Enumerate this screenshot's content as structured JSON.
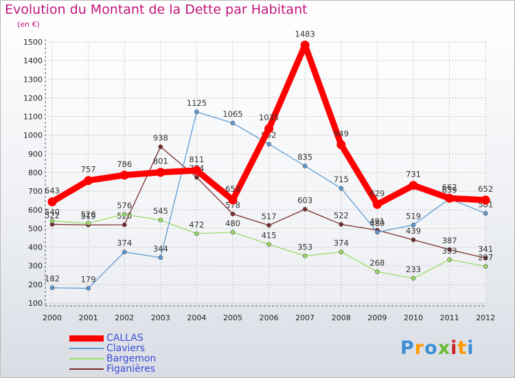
{
  "chart_data": {
    "type": "line",
    "title": "Evolution du Montant de la Dette par Habitant",
    "subtitle": "(en €)",
    "x": [
      "2000",
      "2001",
      "2002",
      "2003",
      "2004",
      "2005",
      "2006",
      "2007",
      "2008",
      "2009",
      "2010",
      "2011",
      "2012"
    ],
    "ylim": [
      100,
      1500
    ],
    "yticks": [
      100,
      200,
      300,
      400,
      500,
      600,
      700,
      800,
      900,
      1000,
      1100,
      1200,
      1300,
      1400,
      1500
    ],
    "grid": true,
    "legend_position": "bottom-left",
    "series": [
      {
        "name": "CALLAS",
        "color": "#ff0000",
        "values": [
          643,
          757,
          786,
          801,
          811,
          653,
          1035,
          1483,
          949,
          629,
          731,
          662,
          652
        ]
      },
      {
        "name": "Claviers",
        "color": "#5b9bd5",
        "values": [
          182,
          179,
          374,
          344,
          1125,
          1065,
          952,
          835,
          715,
          480,
          519,
          659,
          581
        ]
      },
      {
        "name": "Bargemon",
        "color": "#99dd66",
        "values": [
          540,
          528,
          576,
          545,
          472,
          480,
          415,
          353,
          374,
          268,
          233,
          333,
          297
        ]
      },
      {
        "name": "Figanières",
        "color": "#7a2a2a",
        "values": [
          522,
          519,
          520,
          938,
          774,
          578,
          517,
          603,
          522,
          491,
          439,
          387,
          341
        ]
      }
    ]
  },
  "logo": {
    "letters": [
      "P",
      "r",
      "o",
      "x",
      "i",
      "t",
      "i"
    ],
    "colors": [
      "#3a8fd8",
      "#ff9900",
      "#3a8fd8",
      "#66bb33",
      "#cc2222",
      "#ff9900",
      "#3a8fd8"
    ]
  }
}
